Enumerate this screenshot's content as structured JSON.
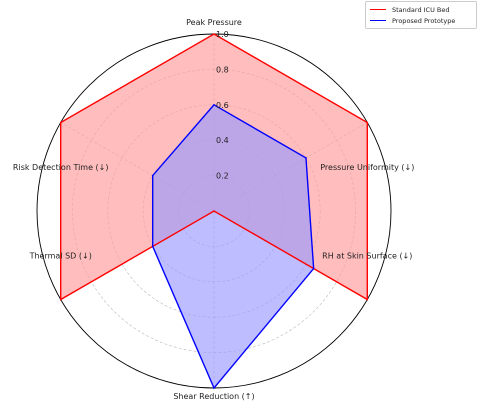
{
  "chart_data": {
    "type": "radar",
    "axes": [
      "Peak Pressure",
      "Pressure Uniformity (↓)",
      "RH at Skin Surface (↓)",
      "Shear Reduction (↑)",
      "Thermal SD (↓)",
      "Risk Detection Time (↓)"
    ],
    "radial_ticks": [
      "0.2",
      "0.4",
      "0.6",
      "0.8",
      "1.0"
    ],
    "rlim": [
      0,
      1.0
    ],
    "grid": true,
    "legend_position": "top-right",
    "series": [
      {
        "name": "Standard ICU Bed",
        "color": "#ff0000",
        "fill": "#ff9999",
        "values": [
          1.0,
          1.0,
          1.0,
          0.0,
          1.0,
          1.0
        ]
      },
      {
        "name": "Proposed Prototype",
        "color": "#0000ff",
        "fill": "#9999ff",
        "values": [
          0.6,
          0.6,
          0.65,
          1.0,
          0.4,
          0.4
        ]
      }
    ]
  }
}
